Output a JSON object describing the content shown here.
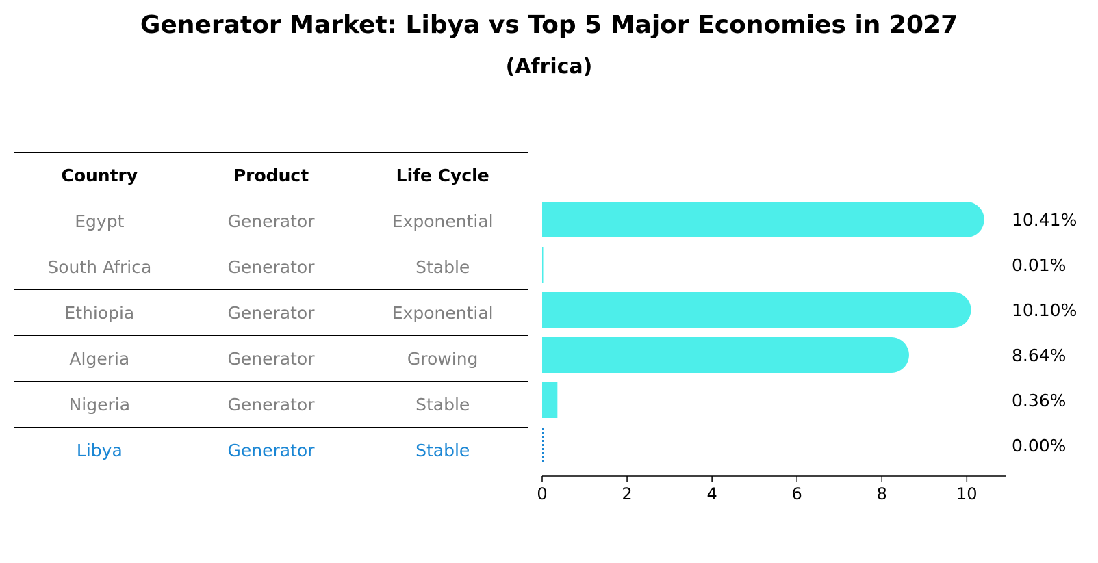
{
  "title": "Generator Market: Libya vs Top 5 Major Economies in 2027",
  "subtitle": "(Africa)",
  "table": {
    "headers": [
      "Country",
      "Product",
      "Life Cycle"
    ],
    "rows": [
      [
        "Egypt",
        "Generator",
        "Exponential"
      ],
      [
        "South Africa",
        "Generator",
        "Stable"
      ],
      [
        "Ethiopia",
        "Generator",
        "Exponential"
      ],
      [
        "Algeria",
        "Generator",
        "Growing"
      ],
      [
        "Nigeria",
        "Generator",
        "Stable"
      ],
      [
        "Libya",
        "Generator",
        "Stable"
      ]
    ],
    "highlight_row": 5
  },
  "colors": {
    "bar": "#4deeea",
    "highlight": "#1a86d4",
    "muted": "#808080"
  },
  "chart_data": {
    "type": "bar",
    "orientation": "horizontal",
    "categories": [
      "Egypt",
      "South Africa",
      "Ethiopia",
      "Algeria",
      "Nigeria",
      "Libya"
    ],
    "values": [
      10.41,
      0.01,
      10.1,
      8.64,
      0.36,
      0.0
    ],
    "value_labels": [
      "10.41%",
      "0.01%",
      "10.10%",
      "8.64%",
      "0.36%",
      "0.00%"
    ],
    "xlim": [
      0,
      10.93
    ],
    "xticks": [
      0,
      2,
      4,
      6,
      8,
      10
    ],
    "xlabel": "",
    "ylabel": ""
  }
}
